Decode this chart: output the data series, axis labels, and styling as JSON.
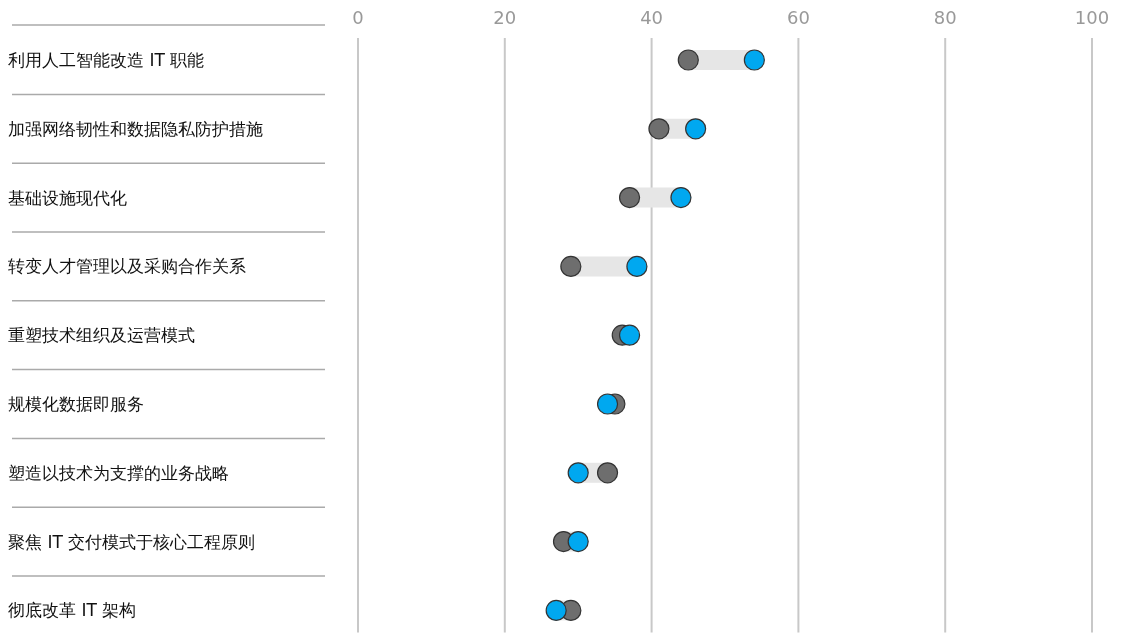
{
  "chart_data": {
    "type": "scatter",
    "orientation": "horizontal",
    "categories": [
      "利用人工智能改造 IT 职能",
      "加强网络韧性和数据隐私防护措施",
      "基础设施现代化",
      "转变人才管理以及采购合作关系",
      "重塑技术组织及运营模式",
      "规模化数据即服务",
      "塑造以技术为支撑的业务战略",
      "聚焦 IT 交付模式于核心工程原则",
      "彻底改革 IT 架构"
    ],
    "series": [
      {
        "color": "#6e6e6e",
        "values": [
          45,
          41,
          37,
          29,
          36,
          35,
          34,
          28,
          29
        ]
      },
      {
        "color": "#00a8f0",
        "values": [
          54,
          46,
          44,
          38,
          37,
          34,
          30,
          30,
          27
        ]
      }
    ],
    "xlim": [
      0,
      100
    ],
    "xticks": [
      0,
      20,
      40,
      60,
      80,
      100
    ],
    "grid": "x",
    "marker": "circle"
  }
}
